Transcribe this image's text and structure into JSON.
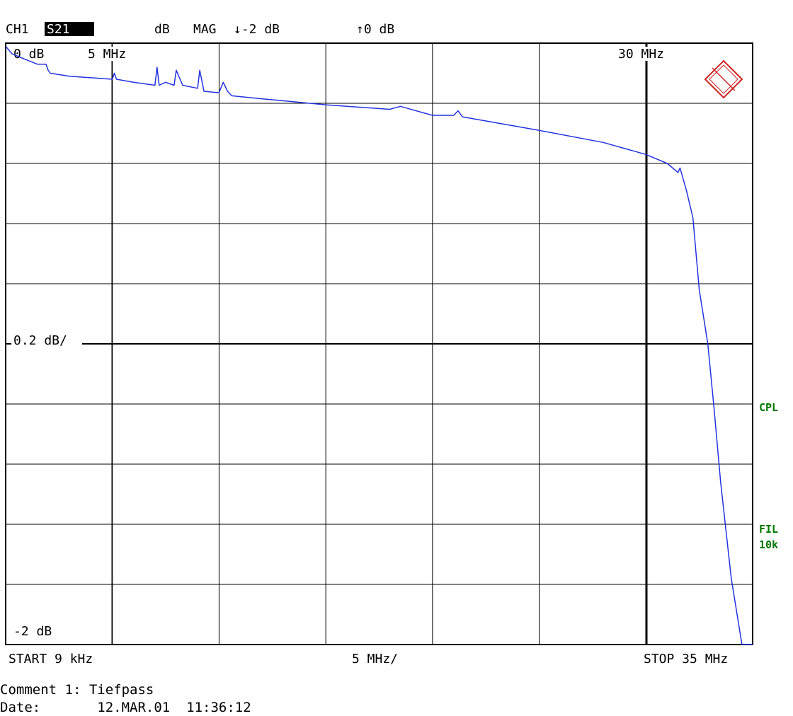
{
  "header": {
    "channel": "CH1",
    "parameter": "S21",
    "unit": "dB",
    "format": "MAG",
    "ref_low": "↓-2 dB",
    "ref_high": "↑0 dB"
  },
  "grid_labels": {
    "top_left": "0 dB",
    "marker_left": "5 MHz",
    "marker_right": "30 MHz",
    "scale": "0.2 dB/",
    "bottom_left": "-2 dB"
  },
  "x_axis": {
    "start": "START  9 kHz",
    "scale": "5 MHz/",
    "stop": "STOP 35 MHz"
  },
  "side_labels": {
    "cpl": "CPL",
    "fil": "FIL",
    "fil_value": "10k"
  },
  "footer": {
    "comment_label": "Comment 1:",
    "comment_value": "Tiefpass",
    "date_label": "Date:",
    "date_value": "12.MAR.01",
    "time_value": "11:36:12"
  },
  "colors": {
    "trace": "#2233dd",
    "grid": "#000000",
    "side_text": "#007700",
    "logo": "#cc2222"
  },
  "chart_data": {
    "type": "line",
    "title": "",
    "xlabel": "",
    "ylabel": "",
    "x_unit": "MHz",
    "y_unit": "dB",
    "xlim": [
      0.009,
      35
    ],
    "ylim": [
      -2,
      0
    ],
    "grid": true,
    "series": [
      {
        "name": "S21",
        "x": [
          0.009,
          0.3,
          0.8,
          1.5,
          1.9,
          2.0,
          2.1,
          3.0,
          5.0,
          5.1,
          5.2,
          6.0,
          7.0,
          7.1,
          7.2,
          7.5,
          7.9,
          8.0,
          8.3,
          9.0,
          9.1,
          9.3,
          10.0,
          10.2,
          10.4,
          10.6,
          12.0,
          15.0,
          17.0,
          18.0,
          18.5,
          20.0,
          21.0,
          21.2,
          21.4,
          25.0,
          28.0,
          30.0,
          31.0,
          31.5,
          31.6,
          31.9,
          32.2,
          32.5,
          32.9,
          33.2,
          33.5,
          34.0,
          34.5,
          35.0
        ],
        "y": [
          -0.01,
          -0.035,
          -0.05,
          -0.07,
          -0.07,
          -0.09,
          -0.1,
          -0.11,
          -0.12,
          -0.1,
          -0.12,
          -0.13,
          -0.14,
          -0.08,
          -0.14,
          -0.13,
          -0.14,
          -0.09,
          -0.14,
          -0.15,
          -0.09,
          -0.16,
          -0.165,
          -0.13,
          -0.16,
          -0.175,
          -0.185,
          -0.205,
          -0.215,
          -0.22,
          -0.21,
          -0.24,
          -0.24,
          -0.225,
          -0.245,
          -0.29,
          -0.33,
          -0.37,
          -0.4,
          -0.43,
          -0.415,
          -0.49,
          -0.58,
          -0.82,
          -1.0,
          -1.22,
          -1.46,
          -1.78,
          -2.0,
          -2.0
        ]
      }
    ]
  }
}
